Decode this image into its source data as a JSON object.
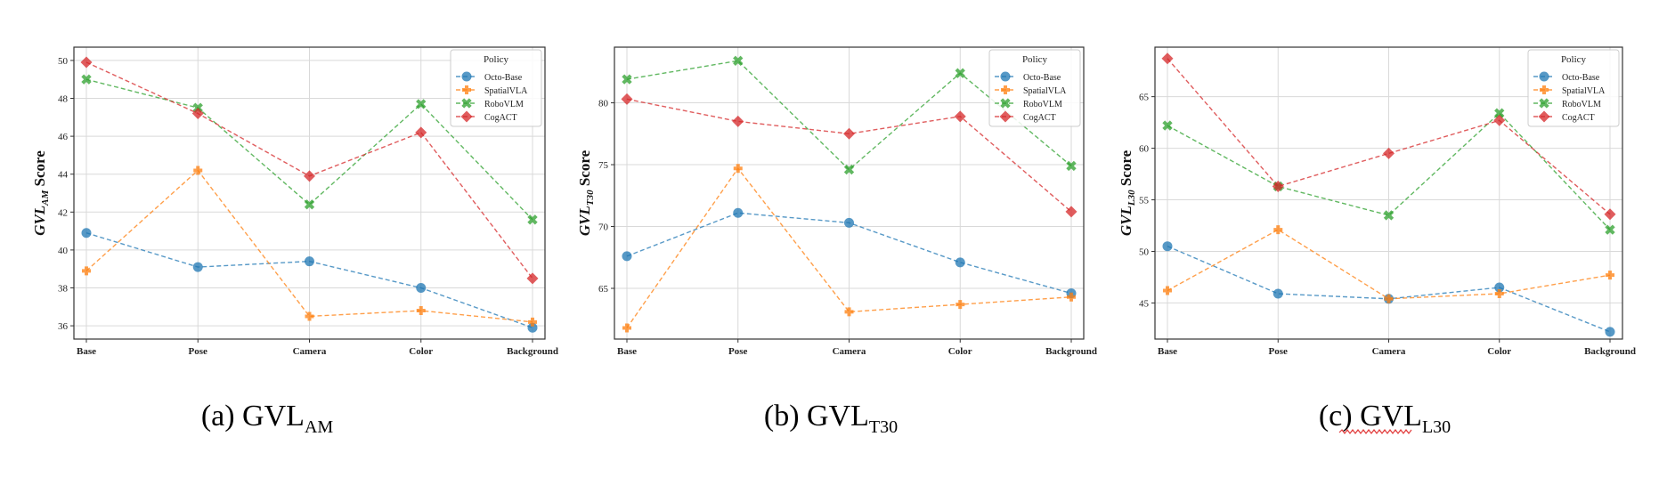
{
  "legend": {
    "title": "Policy",
    "entries": [
      "Octo-Base",
      "SpatialVLA",
      "RoboVLM",
      "CogACT"
    ]
  },
  "series_style": {
    "Octo-Base": {
      "color": "#1f77b4",
      "marker": "circle"
    },
    "SpatialVLA": {
      "color": "#ff7f0e",
      "marker": "plus"
    },
    "RoboVLM": {
      "color": "#2ca02c",
      "marker": "x"
    },
    "CogACT": {
      "color": "#d62728",
      "marker": "diamond"
    }
  },
  "chart_data": [
    {
      "type": "line",
      "caption": {
        "prefix": "(a) GVL",
        "sub": "AM"
      },
      "ylabel": {
        "prefix": "GVL",
        "sub": "AM",
        "suffix": " Score"
      },
      "categories": [
        "Base",
        "Pose",
        "Camera",
        "Color",
        "Background"
      ],
      "ylim": [
        35.3,
        50.7
      ],
      "yticks": [
        36,
        38,
        40,
        42,
        44,
        46,
        48,
        50
      ],
      "grid": true,
      "legend_position": "top-right",
      "series": [
        {
          "name": "Octo-Base",
          "values": [
            40.9,
            39.1,
            39.4,
            38.0,
            35.9
          ]
        },
        {
          "name": "SpatialVLA",
          "values": [
            38.9,
            44.2,
            36.5,
            36.8,
            36.2
          ]
        },
        {
          "name": "RoboVLM",
          "values": [
            49.0,
            47.5,
            42.4,
            47.7,
            41.6
          ]
        },
        {
          "name": "CogACT",
          "values": [
            49.9,
            47.2,
            43.9,
            46.2,
            38.5
          ]
        }
      ]
    },
    {
      "type": "line",
      "caption": {
        "prefix": "(b) GVL",
        "sub": "T30"
      },
      "ylabel": {
        "prefix": "GVL",
        "sub": "T30",
        "suffix": " Score"
      },
      "categories": [
        "Base",
        "Pose",
        "Camera",
        "Color",
        "Background"
      ],
      "ylim": [
        60.9,
        84.5
      ],
      "yticks": [
        65,
        70,
        75,
        80
      ],
      "grid": true,
      "legend_position": "top-right",
      "series": [
        {
          "name": "Octo-Base",
          "values": [
            67.6,
            71.1,
            70.3,
            67.1,
            64.6
          ]
        },
        {
          "name": "SpatialVLA",
          "values": [
            61.8,
            74.7,
            63.1,
            63.7,
            64.3
          ]
        },
        {
          "name": "RoboVLM",
          "values": [
            81.9,
            83.4,
            74.6,
            82.4,
            74.9
          ]
        },
        {
          "name": "CogACT",
          "values": [
            80.3,
            78.5,
            77.5,
            78.9,
            71.2
          ]
        }
      ]
    },
    {
      "type": "line",
      "caption": {
        "prefix": "(c) GVL",
        "sub": "L30"
      },
      "ylabel": {
        "prefix": "GVL",
        "sub": "L30",
        "suffix": " Score"
      },
      "categories": [
        "Base",
        "Pose",
        "Camera",
        "Color",
        "Background"
      ],
      "ylim": [
        41.5,
        69.8
      ],
      "yticks": [
        45,
        50,
        55,
        60,
        65
      ],
      "grid": true,
      "legend_position": "top-right",
      "series": [
        {
          "name": "Octo-Base",
          "values": [
            50.5,
            45.9,
            45.4,
            46.5,
            42.2
          ]
        },
        {
          "name": "SpatialVLA",
          "values": [
            46.2,
            52.1,
            45.4,
            45.9,
            47.7
          ]
        },
        {
          "name": "RoboVLM",
          "values": [
            62.2,
            56.3,
            53.5,
            63.4,
            52.1
          ]
        },
        {
          "name": "CogACT",
          "values": [
            68.7,
            56.3,
            59.5,
            62.7,
            53.6
          ]
        }
      ]
    }
  ]
}
